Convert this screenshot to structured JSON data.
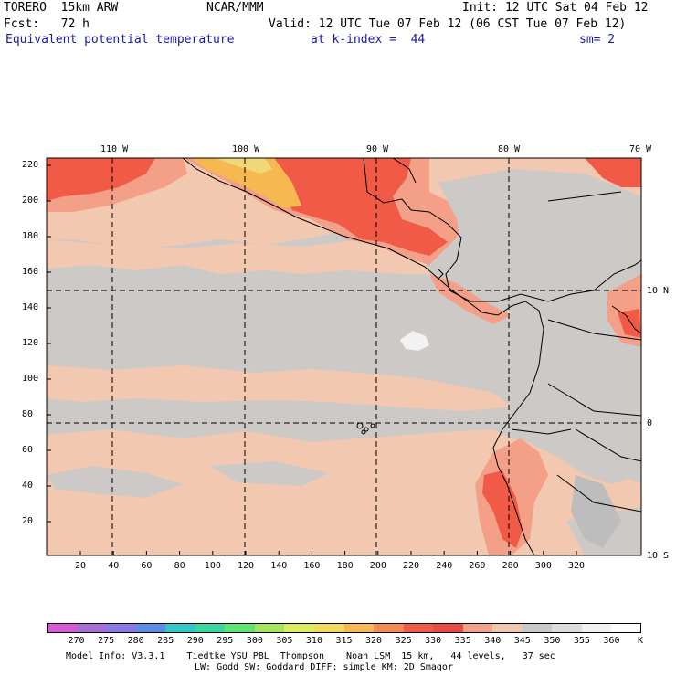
{
  "header": {
    "model": "TORERO  15km ARW",
    "center": "NCAR/MMM",
    "init": "Init: 12 UTC Sat 04 Feb 12",
    "fcst": "Fcst:   72 h",
    "valid": "Valid: 12 UTC Tue 07 Feb 12 (06 CST Tue 07 Feb 12)",
    "field": "Equivalent potential temperature",
    "kindex": "at k-index =  44",
    "smooth": "sm= 2"
  },
  "top_lon_labels": [
    "110 W",
    "100 W",
    "90 W",
    "80 W",
    "70 W"
  ],
  "right_lat_labels": [
    "10 N",
    "0",
    "10 S"
  ],
  "y_ticks": [
    "220",
    "200",
    "180",
    "160",
    "140",
    "120",
    "100",
    "80",
    "60",
    "40",
    "20"
  ],
  "x_ticks": [
    "20",
    "40",
    "60",
    "80",
    "100",
    "120",
    "140",
    "160",
    "180",
    "200",
    "220",
    "240",
    "260",
    "280",
    "300",
    "320"
  ],
  "colorbar": {
    "labels": [
      "270",
      "275",
      "280",
      "285",
      "290",
      "295",
      "300",
      "305",
      "310",
      "315",
      "320",
      "325",
      "330",
      "335",
      "340",
      "345",
      "350",
      "355",
      "360"
    ],
    "unit": "K",
    "colors": [
      "#d65ad6",
      "#a86ed8",
      "#8a78e6",
      "#5a8ee6",
      "#32c8c8",
      "#3ad6a0",
      "#5ae670",
      "#a6e65a",
      "#dcee5a",
      "#f0dc5a",
      "#f6b850",
      "#f48a50",
      "#f05a46",
      "#e84a44",
      "#f4a088",
      "#f0c8b0",
      "#c8c8c8",
      "#dcdcdc",
      "#f0f0f0",
      "#ffffff"
    ]
  },
  "footer": {
    "line1": "Model Info: V3.3.1    Tiedtke YSU PBL  Thompson    Noah LSM  15 km,   44 levels,   37 sec",
    "line2": "LW: Godd SW: Goddard DIFF: simple KM: 2D Smagor"
  }
}
